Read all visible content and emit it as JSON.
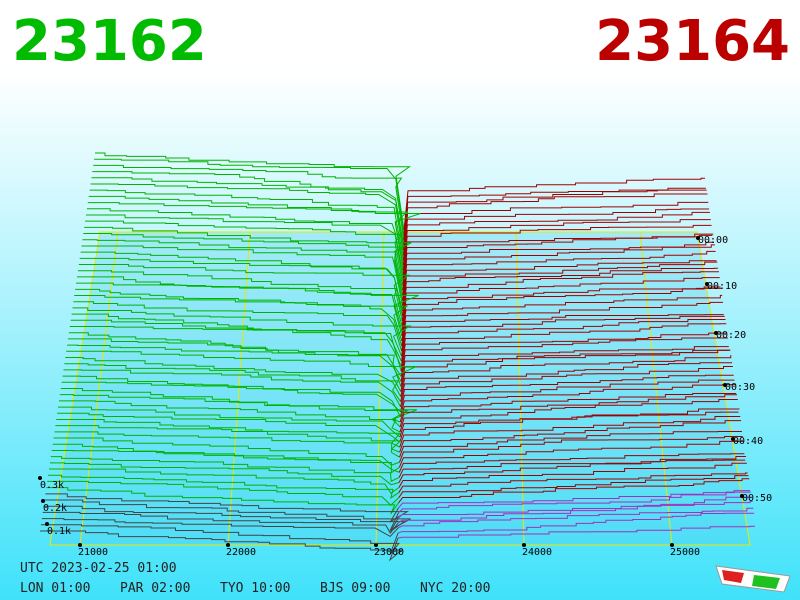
{
  "header": {
    "bid": "23162",
    "ask": "23164"
  },
  "price_axis": [
    "21000",
    "22000",
    "23000",
    "24000",
    "25000"
  ],
  "time_axis": [
    "00:00",
    "00:10",
    "00:20",
    "00:30",
    "00:40",
    "00:50"
  ],
  "depth_axis": [
    "0.3k",
    "0.2k",
    "0.1k"
  ],
  "footer": {
    "utc": "UTC 2023-02-25 01:00",
    "cities": [
      "LON 01:00",
      "PAR 02:00",
      "TYO 10:00",
      "BJS 09:00",
      "NYC 20:00"
    ]
  }
}
